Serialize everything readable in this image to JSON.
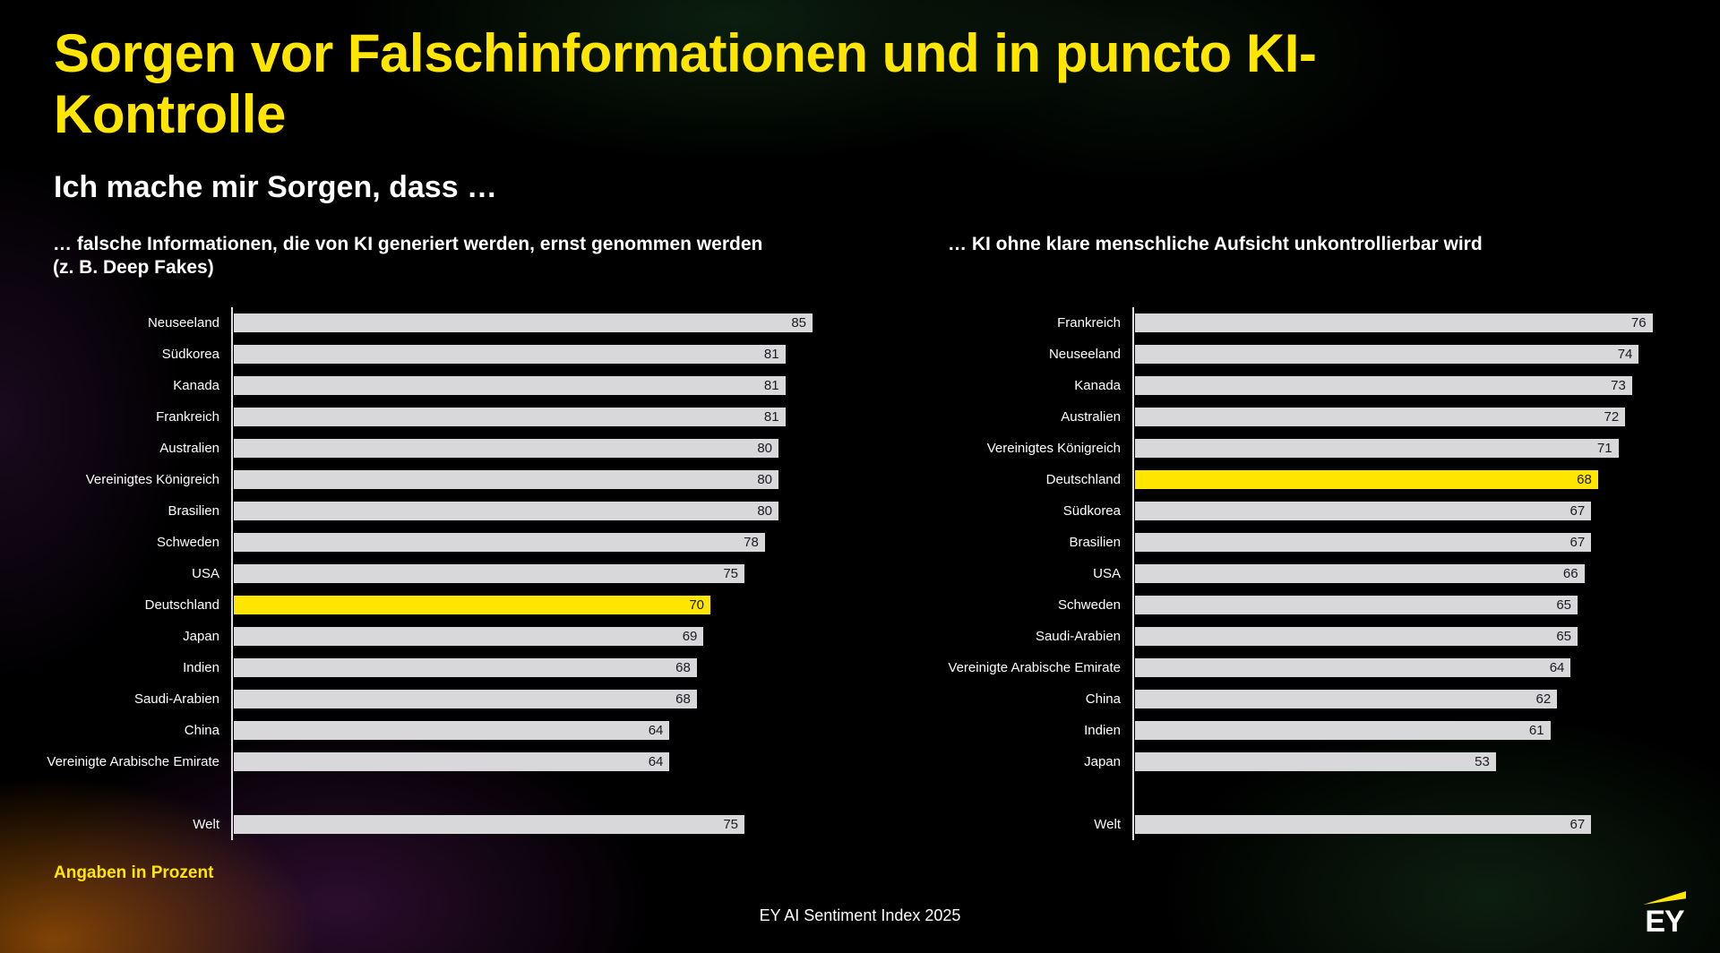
{
  "page": {
    "title": "Sorgen vor Falschinformationen und in puncto KI-Kontrolle",
    "subtitle": "Ich mache mir Sorgen, dass …",
    "footnote": "Angaben in Prozent",
    "source": "EY AI Sentiment Index 2025",
    "brand": "EY"
  },
  "colors": {
    "accent_yellow": "#FFE600",
    "bar_gray": "#D8D8DA",
    "bar_value_text": "#1A1A20",
    "text_white": "#FFFFFF",
    "background": "#000000"
  },
  "chart_data": [
    {
      "type": "bar",
      "orientation": "horizontal",
      "title": "… falsche Informationen, die von KI generiert werden, ernst genommen werden (z. B. Deep Fakes)",
      "value_unit": "percent",
      "xlim": [
        0,
        100
      ],
      "grid": false,
      "legend": false,
      "categories": [
        "Neuseeland",
        "Südkorea",
        "Kanada",
        "Frankreich",
        "Australien",
        "Vereinigtes Königreich",
        "Brasilien",
        "Schweden",
        "USA",
        "Deutschland",
        "Japan",
        "Indien",
        "Saudi-Arabien",
        "China",
        "Vereinigte Arabische Emirate"
      ],
      "values": [
        85,
        81,
        81,
        81,
        80,
        80,
        80,
        78,
        75,
        70,
        69,
        68,
        68,
        64,
        64
      ],
      "highlight_category": "Deutschland",
      "highlight_color": "#FFE600",
      "total_row": {
        "label": "Welt",
        "value": 75
      }
    },
    {
      "type": "bar",
      "orientation": "horizontal",
      "title": "… KI ohne klare menschliche Aufsicht unkontrollierbar wird",
      "value_unit": "percent",
      "xlim": [
        0,
        100
      ],
      "grid": false,
      "legend": false,
      "categories": [
        "Frankreich",
        "Neuseeland",
        "Kanada",
        "Australien",
        "Vereinigtes Königreich",
        "Deutschland",
        "Südkorea",
        "Brasilien",
        "USA",
        "Schweden",
        "Saudi-Arabien",
        "Vereinigte Arabische Emirate",
        "China",
        "Indien",
        "Japan"
      ],
      "values": [
        76,
        74,
        73,
        72,
        71,
        68,
        67,
        67,
        66,
        65,
        65,
        64,
        62,
        61,
        53
      ],
      "highlight_category": "Deutschland",
      "highlight_color": "#FFE600",
      "total_row": {
        "label": "Welt",
        "value": 67
      }
    }
  ]
}
